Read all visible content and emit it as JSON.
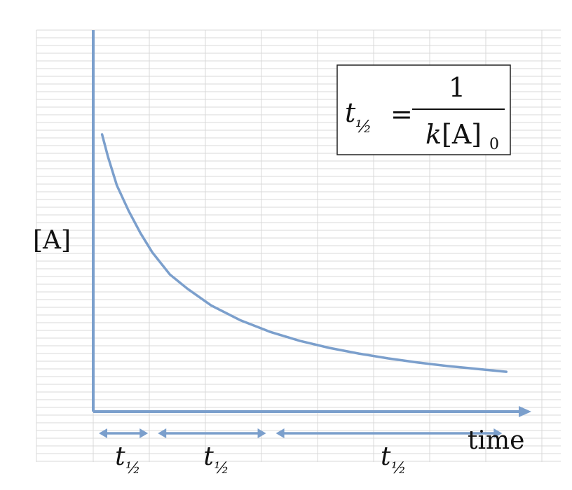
{
  "chart_data": {
    "type": "line",
    "title": "",
    "xlabel": "time",
    "ylabel": "[A]",
    "grid": true,
    "legend": "none",
    "series": [
      {
        "x": [
          0.15,
          0.25,
          0.4,
          0.6,
          0.8,
          1.0,
          1.3,
          1.6,
          2.0,
          2.5,
          3.0,
          3.5,
          4.0,
          4.5,
          5.0,
          5.5,
          6.0,
          7.0
        ],
        "y": [
          0.87,
          0.8,
          0.71,
          0.63,
          0.56,
          0.5,
          0.43,
          0.385,
          0.333,
          0.286,
          0.25,
          0.222,
          0.2,
          0.182,
          0.167,
          0.154,
          0.143,
          0.125
        ]
      }
    ],
    "xlim": [
      0,
      7.4
    ],
    "ylim": [
      0,
      1.05
    ],
    "annotations": {
      "formula": {
        "lhs_base": "t",
        "lhs_sub": "½",
        "equals": "=",
        "numerator": "1",
        "denominator_k": "k",
        "denominator_conc": "[A]",
        "denominator_sub": "0"
      },
      "half_life_intervals": [
        {
          "start": 0,
          "end": 1,
          "label_base": "t",
          "label_sub": "½"
        },
        {
          "start": 1,
          "end": 3,
          "label_base": "t",
          "label_sub": "½"
        },
        {
          "start": 3,
          "end": 7,
          "label_base": "t",
          "label_sub": "½"
        }
      ]
    },
    "colors": {
      "axis": "#7b9fcc",
      "curve": "#7b9fcc",
      "arrow": "#7b9fcc",
      "grid": "#d9d9d9",
      "text": "#111111"
    }
  }
}
